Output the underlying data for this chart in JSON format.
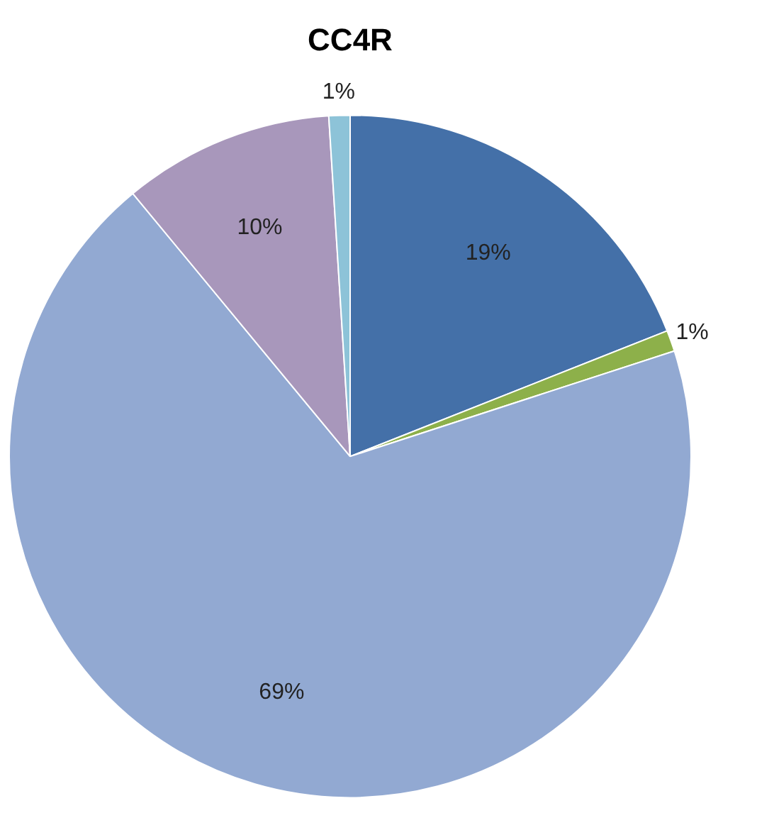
{
  "chart_data": {
    "type": "pie",
    "title": "CC4R",
    "categories": [
      null,
      null,
      null,
      null,
      null
    ],
    "values": [
      19,
      1,
      69,
      10,
      1
    ],
    "colors": [
      "#4470a8",
      "#8db04a",
      "#92a9d2",
      "#a897bb",
      "#8dc3d8"
    ],
    "value_labels": [
      "19%",
      "1%",
      "69%",
      "10%",
      "1%"
    ],
    "legend": false
  }
}
